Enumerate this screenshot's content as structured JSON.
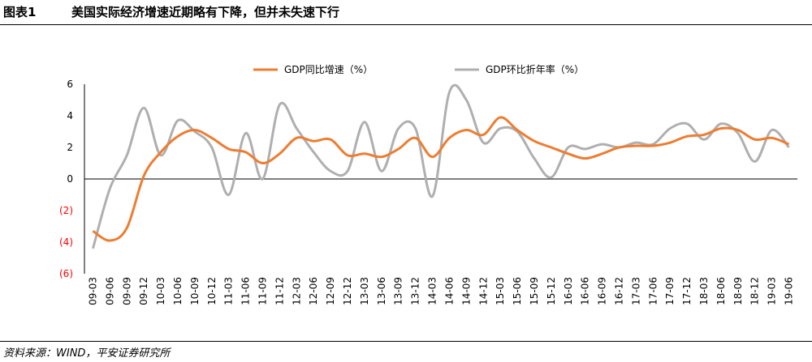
{
  "header": {
    "figure_label": "图表1",
    "title": "美国实际经济增速近期略有下降，但并未失速下行"
  },
  "footer": {
    "source": "资料来源：WIND，平安证券研究所"
  },
  "colors": {
    "gdp_yoy": "#ED7D31",
    "gdp_qoq": "#AFAFAF",
    "negative_tick": "#FF0000"
  },
  "chart_data": {
    "type": "line",
    "title": "",
    "xlabel": "",
    "ylabel": "",
    "ylim": [
      -6,
      6
    ],
    "yticks": [
      6,
      4,
      2,
      0,
      -2,
      -4,
      -6
    ],
    "ytick_labels": [
      "6",
      "4",
      "2",
      "0",
      "(2)",
      "(4)",
      "(6)"
    ],
    "legend_position": "top",
    "grid": false,
    "x": [
      "09-03",
      "09-06",
      "09-09",
      "09-12",
      "10-03",
      "10-06",
      "10-09",
      "10-12",
      "11-03",
      "11-06",
      "11-09",
      "11-12",
      "12-03",
      "12-06",
      "12-09",
      "12-12",
      "13-03",
      "13-06",
      "13-09",
      "13-12",
      "14-03",
      "14-06",
      "14-09",
      "14-12",
      "15-03",
      "15-06",
      "15-09",
      "15-12",
      "16-03",
      "16-06",
      "16-09",
      "16-12",
      "17-03",
      "17-06",
      "17-09",
      "17-12",
      "18-03",
      "18-06",
      "18-09",
      "18-12",
      "19-03",
      "19-06"
    ],
    "series": [
      {
        "name": "GDP同比增速（%）",
        "values": [
          -3.3,
          -3.9,
          -3.1,
          0.2,
          1.7,
          2.7,
          3.1,
          2.6,
          1.9,
          1.7,
          1.0,
          1.6,
          2.6,
          2.4,
          2.5,
          1.5,
          1.6,
          1.4,
          1.9,
          2.6,
          1.4,
          2.6,
          3.1,
          2.8,
          3.9,
          3.1,
          2.4,
          2.0,
          1.6,
          1.3,
          1.6,
          2.0,
          2.1,
          2.1,
          2.3,
          2.7,
          2.8,
          3.2,
          3.1,
          2.5,
          2.6,
          2.2
        ]
      },
      {
        "name": "GDP环比折年率（%）",
        "values": [
          -4.4,
          -0.6,
          1.5,
          4.5,
          1.5,
          3.7,
          3.0,
          2.0,
          -1.0,
          2.9,
          0.0,
          4.7,
          3.2,
          1.7,
          0.5,
          0.5,
          3.6,
          0.5,
          3.2,
          3.2,
          -1.1,
          5.5,
          5.0,
          2.3,
          3.2,
          3.0,
          1.3,
          0.1,
          2.0,
          1.9,
          2.2,
          2.0,
          2.3,
          2.2,
          3.2,
          3.5,
          2.5,
          3.5,
          2.9,
          1.1,
          3.1,
          2.0
        ]
      }
    ]
  }
}
